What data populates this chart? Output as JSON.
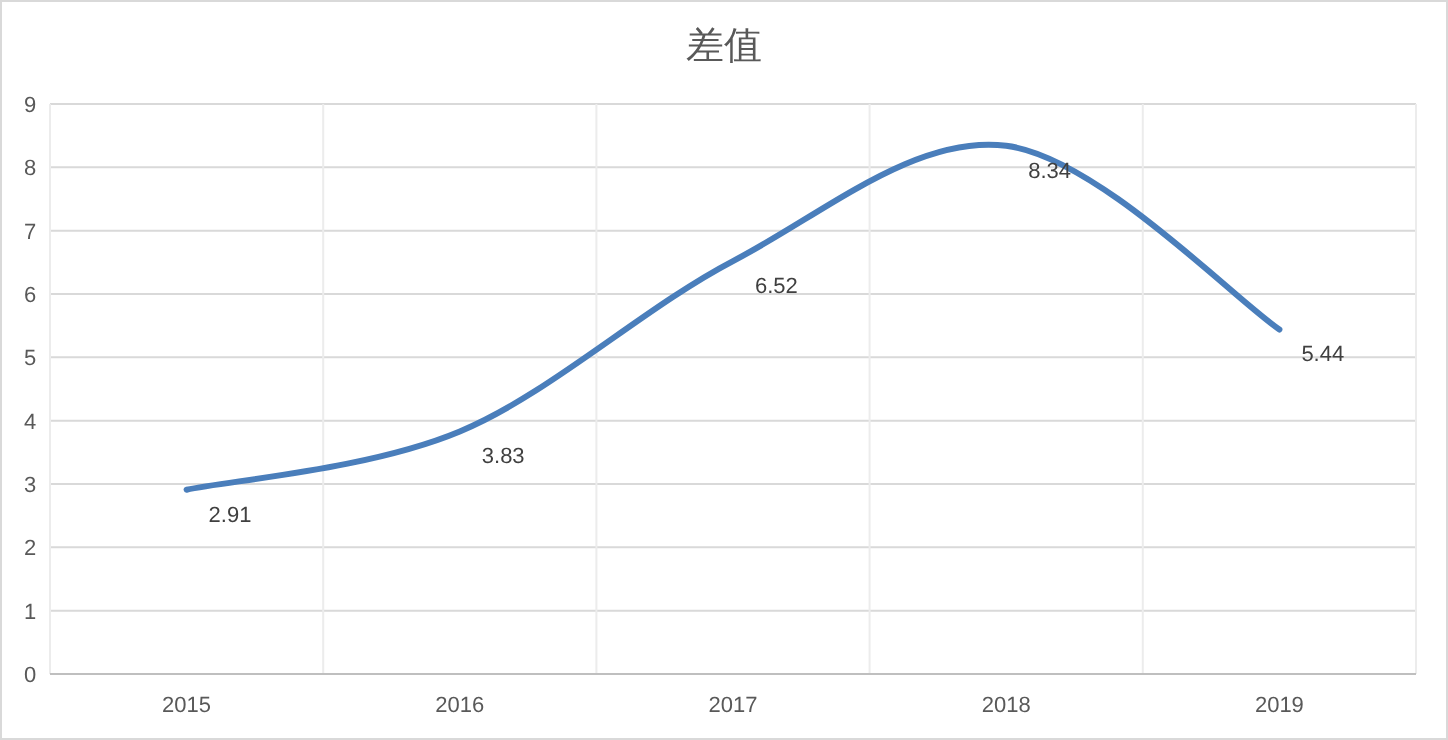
{
  "chart_data": {
    "type": "line",
    "title": "差值",
    "categories": [
      "2015",
      "2016",
      "2017",
      "2018",
      "2019"
    ],
    "series": [
      {
        "color": "#4a7ebb",
        "values": [
          2.91,
          3.83,
          6.52,
          8.34,
          5.44
        ]
      }
    ],
    "ylim": [
      0,
      9
    ],
    "yticks": [
      0,
      1,
      2,
      3,
      4,
      5,
      6,
      7,
      8,
      9
    ],
    "grid": true,
    "data_labels": true,
    "marker": "none",
    "line_style": "solid"
  }
}
